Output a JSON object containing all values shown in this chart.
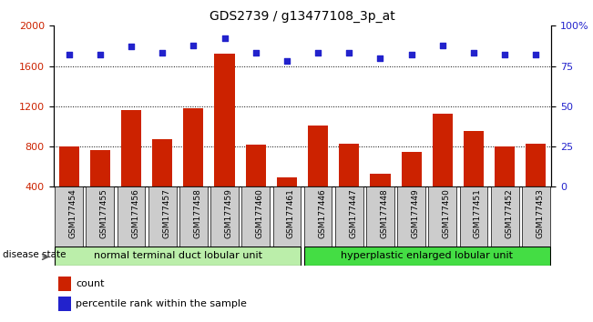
{
  "title": "GDS2739 / g13477108_3p_at",
  "categories": [
    "GSM177454",
    "GSM177455",
    "GSM177456",
    "GSM177457",
    "GSM177458",
    "GSM177459",
    "GSM177460",
    "GSM177461",
    "GSM177446",
    "GSM177447",
    "GSM177448",
    "GSM177449",
    "GSM177450",
    "GSM177451",
    "GSM177452",
    "GSM177453"
  ],
  "counts": [
    800,
    760,
    1160,
    870,
    1180,
    1720,
    820,
    490,
    1010,
    830,
    530,
    750,
    1130,
    950,
    800,
    830
  ],
  "percentiles": [
    82,
    82,
    87,
    83,
    88,
    92,
    83,
    78,
    83,
    83,
    80,
    82,
    88,
    83,
    82,
    82
  ],
  "group1_label": "normal terminal duct lobular unit",
  "group2_label": "hyperplastic enlarged lobular unit",
  "group1_count": 8,
  "group2_count": 8,
  "ylim_left": [
    400,
    2000
  ],
  "ylim_right": [
    0,
    100
  ],
  "yticks_left": [
    400,
    800,
    1200,
    1600,
    2000
  ],
  "yticks_right": [
    0,
    25,
    50,
    75,
    100
  ],
  "bar_color": "#cc2200",
  "dot_color": "#2222cc",
  "group1_color": "#bbeeaa",
  "group2_color": "#44dd44",
  "tick_bg_color": "#cccccc",
  "legend_count_label": "count",
  "legend_pct_label": "percentile rank within the sample",
  "bar_width": 0.65,
  "grid_yticks": [
    800,
    1200,
    1600
  ]
}
